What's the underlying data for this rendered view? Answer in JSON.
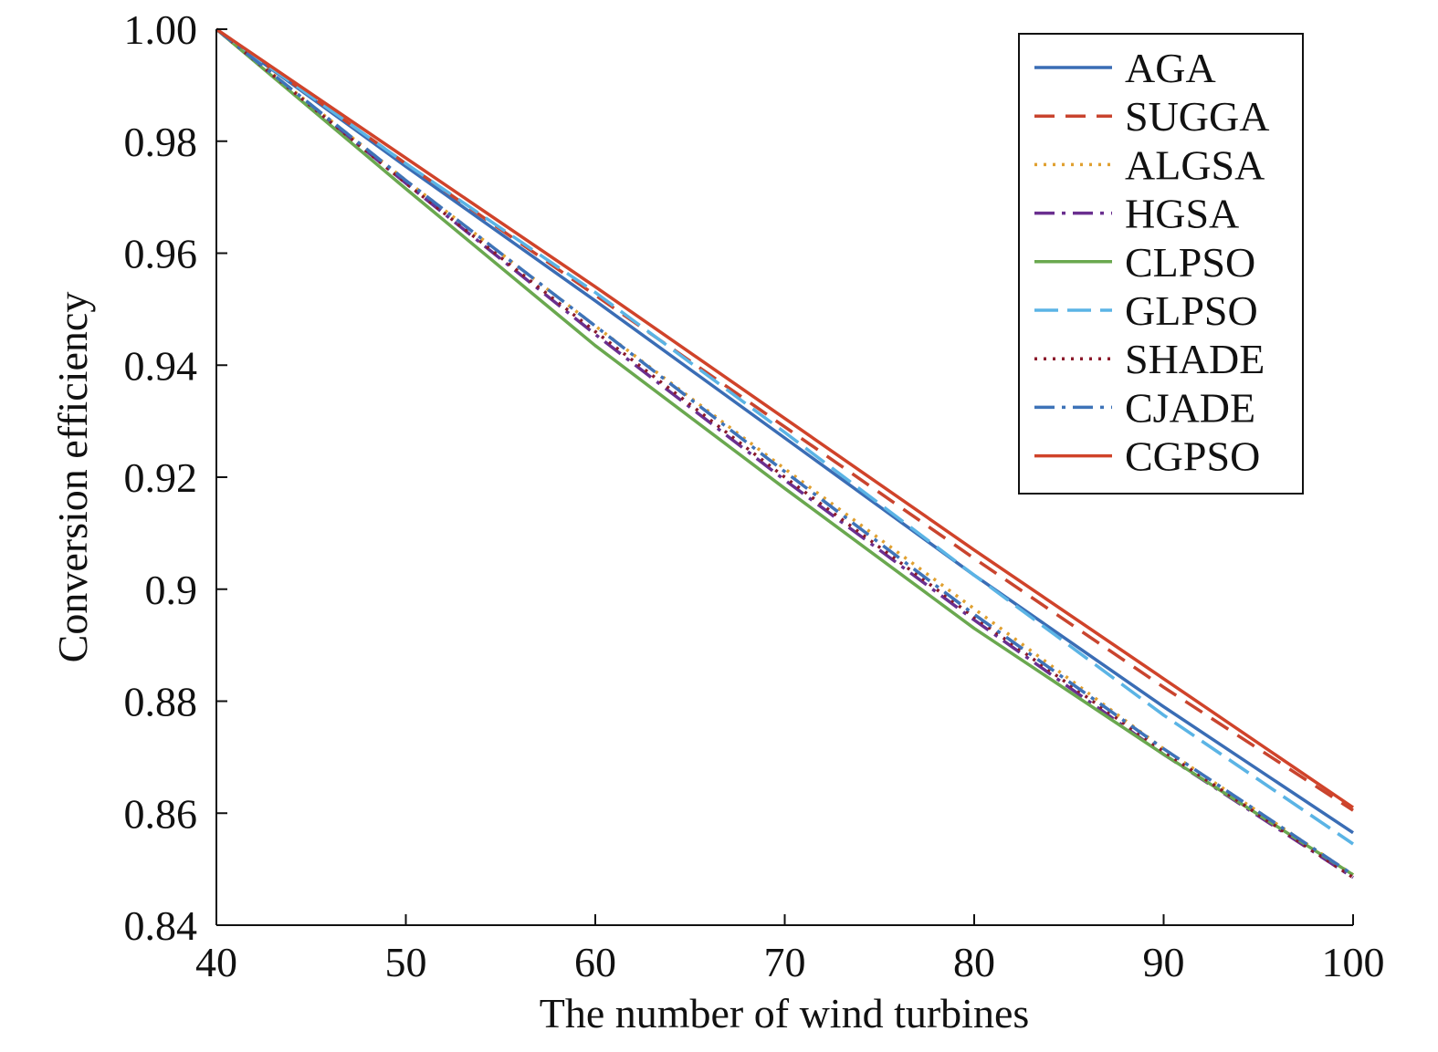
{
  "chart_data": {
    "type": "line",
    "xlabel": "The number of wind turbines",
    "ylabel": "Conversion efficiency",
    "xlim": [
      40,
      100
    ],
    "ylim": [
      0.84,
      1.0
    ],
    "x_ticks": [
      "40",
      "50",
      "60",
      "70",
      "80",
      "90",
      "100"
    ],
    "y_ticks": [
      "0.84",
      "0.86",
      "0.88",
      "0.9",
      "0.92",
      "0.94",
      "0.96",
      "0.98",
      "1.00"
    ],
    "grid": false,
    "legend_position": "top-right",
    "x": [
      40,
      50,
      60,
      70,
      80,
      90,
      100
    ],
    "series": [
      {
        "name": "AGA",
        "color": "#3a6db5",
        "dash": "solid",
        "values": [
          1.0,
          0.9755,
          0.9515,
          0.927,
          0.9025,
          0.879,
          0.8565
        ]
      },
      {
        "name": "SUGGA",
        "color": "#c9442e",
        "dash": "dash",
        "values": [
          1.0,
          0.976,
          0.9525,
          0.929,
          0.9055,
          0.8825,
          0.8605
        ]
      },
      {
        "name": "ALGSA",
        "color": "#e0a030",
        "dash": "dot",
        "values": [
          1.0,
          0.973,
          0.947,
          0.9215,
          0.8965,
          0.8715,
          0.849
        ]
      },
      {
        "name": "HGSA",
        "color": "#6a2f8f",
        "dash": "dashdot",
        "values": [
          1.0,
          0.9725,
          0.9455,
          0.9195,
          0.8945,
          0.8705,
          0.8485
        ]
      },
      {
        "name": "CLPSO",
        "color": "#6aa84f",
        "dash": "solid",
        "values": [
          1.0,
          0.9715,
          0.9435,
          0.918,
          0.893,
          0.8705,
          0.849
        ]
      },
      {
        "name": "GLPSO",
        "color": "#5bb4e5",
        "dash": "longdash",
        "values": [
          1.0,
          0.976,
          0.953,
          0.928,
          0.9025,
          0.8775,
          0.8545
        ]
      },
      {
        "name": "SHADE",
        "color": "#8b1a2b",
        "dash": "dot",
        "values": [
          1.0,
          0.9725,
          0.946,
          0.92,
          0.895,
          0.871,
          0.8485
        ]
      },
      {
        "name": "CJADE",
        "color": "#3e73b8",
        "dash": "dashdot",
        "values": [
          1.0,
          0.973,
          0.947,
          0.921,
          0.8955,
          0.8715,
          0.849
        ]
      },
      {
        "name": "CGPSO",
        "color": "#d0432a",
        "dash": "solid",
        "values": [
          1.0,
          0.977,
          0.954,
          0.9305,
          0.907,
          0.884,
          0.861
        ]
      }
    ]
  }
}
